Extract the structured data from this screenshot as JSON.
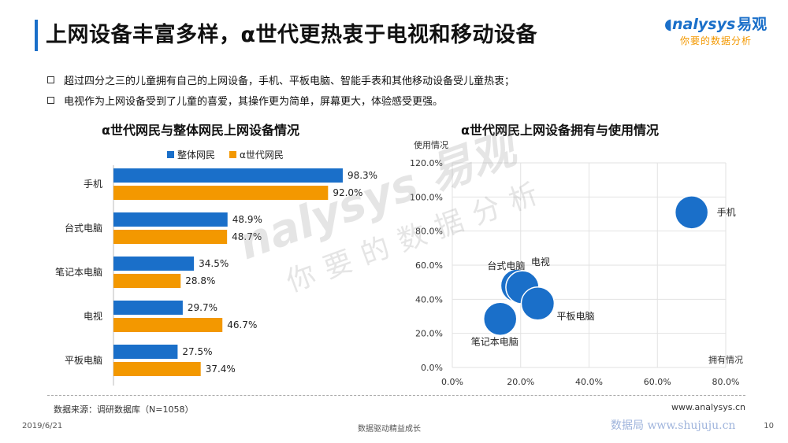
{
  "header": {
    "title": "上网设备丰富多样，α世代更热衷于电视和移动设备",
    "logo_en": "nalysys",
    "logo_cn": "易观",
    "logo_sub": "你要的数据分析"
  },
  "bullets": [
    "超过四分之三的儿童拥有自己的上网设备，手机、平板电脑、智能手表和其他移动设备受儿童热衷；",
    "电视作为上网设备受到了儿童的喜爱，其操作更为简单，屏幕更大，体验感受更强。"
  ],
  "colors": {
    "overall": "#1a6fc9",
    "alpha": "#f39800",
    "bubble": "#1a6fc9",
    "title_bar": "#1a6fc9"
  },
  "chart_data": [
    {
      "type": "bar",
      "orientation": "horizontal",
      "title": "α世代网民与整体网民上网设备情况",
      "categories": [
        "手机",
        "台式电脑",
        "笔记本电脑",
        "电视",
        "平板电脑"
      ],
      "series": [
        {
          "name": "整体网民",
          "values": [
            98.3,
            48.9,
            34.5,
            29.7,
            27.5
          ],
          "labels": [
            "98.3%",
            "48.9%",
            "34.5%",
            "29.7%",
            "27.5%"
          ]
        },
        {
          "name": "α世代网民",
          "values": [
            92.0,
            48.7,
            28.8,
            46.7,
            37.4
          ],
          "labels": [
            "92.0%",
            "48.7%",
            "28.8%",
            "46.7%",
            "37.4%"
          ]
        }
      ],
      "unit": "%",
      "legend": "top"
    },
    {
      "type": "scatter",
      "subtype": "bubble",
      "title": "α世代网民上网设备拥有与使用情况",
      "xlabel": "拥有情况",
      "ylabel": "使用情况",
      "xlim": [
        0,
        80
      ],
      "ylim": [
        0,
        120
      ],
      "xticks": [
        "0.0%",
        "20.0%",
        "40.0%",
        "60.0%",
        "80.0%"
      ],
      "yticks": [
        "0.0%",
        "20.0%",
        "40.0%",
        "60.0%",
        "80.0%",
        "100.0%",
        "120.0%"
      ],
      "grid": true,
      "points": [
        {
          "label": "手机",
          "x": 70.0,
          "y": 91.0
        },
        {
          "label": "台式电脑",
          "x": 19.0,
          "y": 48.0
        },
        {
          "label": "电视",
          "x": 20.5,
          "y": 47.0
        },
        {
          "label": "平板电脑",
          "x": 25.0,
          "y": 37.5
        },
        {
          "label": "笔记本电脑",
          "x": 14.0,
          "y": 28.5
        }
      ]
    }
  ],
  "watermark": {
    "line1": "nalysys 易观",
    "line2": "你要的数据分析"
  },
  "footer": {
    "source": "数据来源：调研数据库（N=1058）",
    "site": "www.analysys.cn",
    "date": "2019/6/21",
    "slogan": "数据驱动精益成长",
    "sjj": "数据局  www.shujuju.cn",
    "page": "10"
  }
}
